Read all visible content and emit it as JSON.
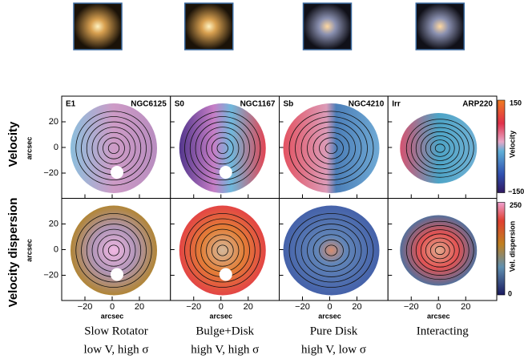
{
  "panels": [
    {
      "type": "E1",
      "name": "NGC6125",
      "caption": "Slow Rotator",
      "subcaption": "low V, high σ"
    },
    {
      "type": "S0",
      "name": "NGC1167",
      "caption": "Bulge+Disk",
      "subcaption": "high V, high σ"
    },
    {
      "type": "Sb",
      "name": "NGC4210",
      "caption": "Pure Disk",
      "subcaption": "high V, low σ"
    },
    {
      "type": "Irr",
      "name": "ARP220",
      "caption": "Interacting",
      "subcaption": ""
    }
  ],
  "rows": [
    {
      "label": "Velocity",
      "colorbar_label": "Velocity",
      "colorbar_ticks": [
        "150",
        "−150"
      ]
    },
    {
      "label": "Velocity dispersion",
      "colorbar_label": "Vel. dispersion",
      "colorbar_ticks": [
        "250",
        "0"
      ]
    }
  ],
  "axis_label": "arcsec",
  "yticks": [
    "20",
    "0",
    "−20"
  ],
  "xticks": [
    "−20",
    "0",
    "20"
  ]
}
